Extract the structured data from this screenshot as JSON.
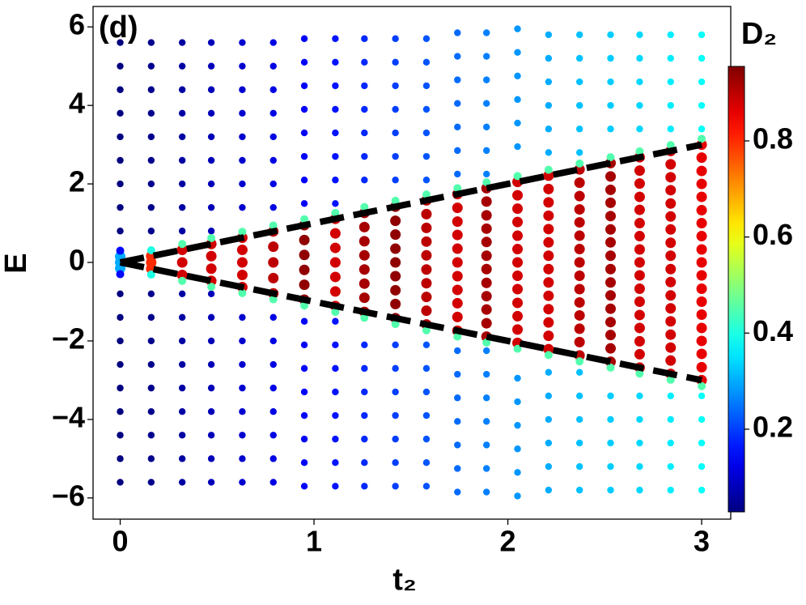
{
  "chart_data": {
    "type": "scatter",
    "annotation": "(d)",
    "x_label": "t₂",
    "y_label": "E",
    "colorbar_label": "D₂",
    "xlim": [
      -0.14,
      3.15
    ],
    "ylim": [
      -6.54,
      6.52
    ],
    "clim": [
      0.028,
      0.955
    ],
    "xticks": [
      0,
      1,
      2,
      3
    ],
    "yticks": [
      {
        "value": -6,
        "label": "−6"
      },
      {
        "value": -4,
        "label": "−4"
      },
      {
        "value": -2,
        "label": "−2"
      },
      0,
      2,
      4,
      6
    ],
    "cticks": [
      0.2,
      0.4,
      0.6,
      0.8
    ],
    "lines": [
      {
        "x": [
          0,
          3
        ],
        "y": [
          0,
          3
        ],
        "color": "#000000"
      },
      {
        "x": [
          0,
          3
        ],
        "y": [
          0,
          -3
        ],
        "color": "#000000"
      }
    ],
    "columns": [
      {
        "x": 0,
        "E_outer": [
          5.6,
          5.0,
          4.4,
          3.8,
          3.2,
          2.6,
          2.0,
          1.4,
          0.8,
          -0.8,
          -1.4,
          -2.0,
          -2.6,
          -3.2,
          -3.8,
          -4.4,
          -5.0,
          -5.6
        ],
        "D2_outer": 0.02,
        "E_edge": [
          0.3,
          -0.3
        ],
        "D2_edge": 0.15,
        "E_inner": [
          0.15,
          0,
          -0.15
        ],
        "D2_inner": 0.3
      },
      {
        "x": 0.16,
        "E_outer": [
          5.6,
          5.0,
          4.4,
          3.8,
          3.2,
          2.6,
          2.0,
          1.4,
          0.8,
          -0.8,
          -1.4,
          -2.0,
          -2.6,
          -3.2,
          -3.8,
          -4.4,
          -5.0,
          -5.6
        ],
        "D2_outer": 0.04,
        "E_edge": [
          0.31,
          -0.31
        ],
        "D2_edge": 0.4,
        "E_inner": [
          0.16,
          0,
          -0.16
        ],
        "D2_inner": 0.8
      },
      {
        "x": 0.32,
        "E_outer": [
          5.6,
          5.0,
          4.4,
          3.8,
          3.2,
          2.6,
          2.0,
          1.4,
          0.8,
          -0.8,
          -1.4,
          -2.0,
          -2.6,
          -3.2,
          -3.8,
          -4.4,
          -5.0,
          -5.6
        ],
        "D2_outer": 0.06,
        "E_edge": [
          0.47,
          -0.47
        ],
        "D2_edge": 0.45,
        "E_inner": [
          0.32,
          0,
          -0.32
        ],
        "D2_inner": 0.88
      },
      {
        "x": 0.47,
        "E_outer": [
          5.6,
          5.0,
          4.4,
          3.8,
          3.2,
          2.6,
          2.0,
          1.4,
          0.8,
          -0.8,
          -1.4,
          -2.0,
          -2.6,
          -3.2,
          -3.8,
          -4.4,
          -5.0,
          -5.6
        ],
        "D2_outer": 0.08,
        "E_edge": [
          0.62,
          -0.62
        ],
        "D2_edge": 0.45,
        "E_inner": [
          0.47,
          0.16,
          -0.16,
          -0.47
        ],
        "D2_inner": 0.88
      },
      {
        "x": 0.63,
        "E_outer": [
          5.6,
          5.0,
          4.4,
          3.8,
          3.2,
          2.6,
          2.0,
          1.4,
          -1.4,
          -2.0,
          -2.6,
          -3.2,
          -3.8,
          -4.4,
          -5.0,
          -5.6
        ],
        "D2_outer": 0.1,
        "E_edge": [
          0.78,
          -0.78
        ],
        "D2_edge": 0.45,
        "E_inner": [
          0.63,
          0.32,
          0,
          -0.32,
          -0.63
        ],
        "D2_inner": 0.88
      },
      {
        "x": 0.79,
        "E_outer": [
          5.6,
          5.0,
          4.4,
          3.8,
          3.2,
          2.6,
          2.0,
          1.4,
          -1.4,
          -2.0,
          -2.6,
          -3.2,
          -3.8,
          -4.4,
          -5.0,
          -5.6
        ],
        "D2_outer": 0.12,
        "E_edge": [
          0.94,
          -0.94
        ],
        "D2_edge": 0.45,
        "E_inner": [
          0.79,
          0.4,
          0,
          -0.4,
          -0.79
        ],
        "D2_inner": 0.9
      },
      {
        "x": 0.95,
        "E_outer": [
          5.7,
          5.1,
          4.5,
          3.9,
          3.3,
          2.7,
          2.1,
          1.5,
          -1.5,
          -2.1,
          -2.7,
          -3.3,
          -3.9,
          -4.5,
          -5.1,
          -5.7
        ],
        "D2_outer": 0.14,
        "E_edge": [
          1.1,
          -1.1
        ],
        "D2_edge": 0.45,
        "E_inner": [
          0.95,
          0.57,
          0.19,
          -0.19,
          -0.57,
          -0.95
        ],
        "D2_inner": 0.94
      },
      {
        "x": 1.11,
        "E_outer": [
          5.7,
          5.1,
          4.5,
          3.9,
          3.3,
          2.7,
          2.1,
          1.5,
          -1.5,
          -2.1,
          -2.7,
          -3.3,
          -3.9,
          -4.5,
          -5.1,
          -5.7
        ],
        "D2_outer": 0.16,
        "E_edge": [
          1.26,
          -1.26
        ],
        "D2_edge": 0.45,
        "E_inner": [
          1.11,
          0.74,
          0.37,
          0,
          -0.37,
          -0.74,
          -1.11
        ],
        "D2_inner": 0.88
      },
      {
        "x": 1.26,
        "E_outer": [
          5.7,
          5.1,
          4.5,
          3.9,
          3.3,
          2.7,
          2.1,
          -2.1,
          -2.7,
          -3.3,
          -3.9,
          -4.5,
          -5.1,
          -5.7
        ],
        "D2_outer": 0.18,
        "E_edge": [
          1.41,
          -1.41
        ],
        "D2_edge": 0.45,
        "E_inner": [
          1.26,
          0.9,
          0.54,
          0.18,
          -0.18,
          -0.54,
          -0.9,
          -1.26
        ],
        "D2_inner": 0.92
      },
      {
        "x": 1.42,
        "E_outer": [
          5.7,
          5.1,
          4.5,
          3.9,
          3.3,
          2.7,
          2.1,
          -2.1,
          -2.7,
          -3.3,
          -3.9,
          -4.5,
          -5.1,
          -5.7
        ],
        "D2_outer": 0.2,
        "E_edge": [
          1.57,
          -1.57
        ],
        "D2_edge": 0.45,
        "E_inner": [
          1.42,
          1.06,
          0.71,
          0.35,
          0,
          -0.35,
          -0.71,
          -1.06,
          -1.42
        ],
        "D2_inner": 0.94
      },
      {
        "x": 1.58,
        "E_outer": [
          5.7,
          5.1,
          4.5,
          3.9,
          3.3,
          2.7,
          2.1,
          -2.1,
          -2.7,
          -3.3,
          -3.9,
          -4.5,
          -5.1,
          -5.7
        ],
        "D2_outer": 0.22,
        "E_edge": [
          1.73,
          -1.73
        ],
        "D2_edge": 0.45,
        "E_inner": [
          1.58,
          1.23,
          0.88,
          0.53,
          0.18,
          -0.18,
          -0.53,
          -0.88,
          -1.23,
          -1.58
        ],
        "D2_inner": 0.9
      },
      {
        "x": 1.74,
        "E_outer": [
          5.85,
          5.25,
          4.65,
          4.05,
          3.45,
          2.85,
          2.25,
          -2.25,
          -2.85,
          -3.45,
          -4.05,
          -4.65,
          -5.25,
          -5.85
        ],
        "D2_outer": 0.24,
        "E_edge": [
          1.89,
          -1.89
        ],
        "D2_edge": 0.45,
        "E_inner": [
          1.74,
          1.39,
          1.04,
          0.7,
          0.35,
          0,
          -0.35,
          -0.7,
          -1.04,
          -1.39,
          -1.74
        ],
        "D2_inner": 0.88
      },
      {
        "x": 1.89,
        "E_outer": [
          5.85,
          5.25,
          4.65,
          4.05,
          3.45,
          2.85,
          2.25,
          -2.25,
          -2.85,
          -3.45,
          -4.05,
          -4.65,
          -5.25,
          -5.85
        ],
        "D2_outer": 0.26,
        "E_edge": [
          2.04,
          -2.04
        ],
        "D2_edge": 0.45,
        "E_inner": [
          1.89,
          1.55,
          1.2,
          0.86,
          0.52,
          0.17,
          -0.17,
          -0.52,
          -0.86,
          -1.2,
          -1.55,
          -1.89
        ],
        "D2_inner": 0.92
      },
      {
        "x": 2.05,
        "E_outer": [
          5.95,
          5.35,
          4.75,
          4.15,
          3.55,
          2.95,
          -2.95,
          -3.55,
          -4.15,
          -4.75,
          -5.35,
          -5.95
        ],
        "D2_outer": 0.28,
        "E_edge": [
          2.2,
          -2.2
        ],
        "D2_edge": 0.45,
        "E_inner": [
          2.05,
          1.71,
          1.37,
          1.03,
          0.68,
          0.34,
          0,
          -0.34,
          -0.68,
          -1.03,
          -1.37,
          -1.71,
          -2.05
        ],
        "D2_inner": 0.88
      },
      {
        "x": 2.21,
        "E_outer": [
          5.8,
          5.2,
          4.6,
          4.0,
          3.4,
          2.8,
          -2.8,
          -3.4,
          -4.0,
          -4.6,
          -5.2,
          -5.8
        ],
        "D2_outer": 0.3,
        "E_edge": [
          2.36,
          -2.36
        ],
        "D2_edge": 0.45,
        "E_inner": [
          2.21,
          1.87,
          1.53,
          1.19,
          0.85,
          0.51,
          0.17,
          -0.17,
          -0.51,
          -0.85,
          -1.19,
          -1.53,
          -1.87,
          -2.21
        ],
        "D2_inner": 0.88
      },
      {
        "x": 2.37,
        "E_outer": [
          5.8,
          5.2,
          4.6,
          4.0,
          3.4,
          2.8,
          -2.8,
          -3.4,
          -4.0,
          -4.6,
          -5.2,
          -5.8
        ],
        "D2_outer": 0.32,
        "E_edge": [
          2.52,
          -2.52
        ],
        "D2_edge": 0.45,
        "E_inner": [
          2.37,
          2.03,
          1.69,
          1.35,
          1.02,
          0.68,
          0.34,
          0,
          -0.34,
          -0.68,
          -1.02,
          -1.35,
          -1.69,
          -2.03,
          -2.37
        ],
        "D2_inner": 0.9
      },
      {
        "x": 2.53,
        "E_outer": [
          5.8,
          5.2,
          4.6,
          4.0,
          3.4,
          -3.4,
          -4.0,
          -4.6,
          -5.2,
          -5.8
        ],
        "D2_outer": 0.33,
        "E_edge": [
          2.68,
          -2.68
        ],
        "D2_edge": 0.45,
        "E_inner": [
          2.53,
          2.19,
          1.85,
          1.52,
          1.18,
          0.84,
          0.51,
          0.17,
          -0.17,
          -0.51,
          -0.84,
          -1.18,
          -1.52,
          -1.85,
          -2.19,
          -2.53
        ],
        "D2_inner": 0.92
      },
      {
        "x": 2.68,
        "E_outer": [
          5.8,
          5.2,
          4.6,
          4.0,
          3.4,
          -3.4,
          -4.0,
          -4.6,
          -5.2,
          -5.8
        ],
        "D2_outer": 0.34,
        "E_edge": [
          2.83,
          -2.83
        ],
        "D2_edge": 0.45,
        "E_inner": [
          2.68,
          2.34,
          2.01,
          1.67,
          1.34,
          1.0,
          0.67,
          0.33,
          0,
          -0.33,
          -0.67,
          -1.0,
          -1.34,
          -1.67,
          -2.01,
          -2.34,
          -2.68
        ],
        "D2_inner": 0.88
      },
      {
        "x": 2.84,
        "E_outer": [
          5.8,
          5.2,
          4.6,
          4.0,
          3.4,
          -3.4,
          -4.0,
          -4.6,
          -5.2,
          -5.8
        ],
        "D2_outer": 0.36,
        "E_edge": [
          2.99,
          -2.99
        ],
        "D2_edge": 0.45,
        "E_inner": [
          2.84,
          2.5,
          2.17,
          1.84,
          1.5,
          1.17,
          0.84,
          0.5,
          0.17,
          -0.17,
          -0.5,
          -0.84,
          -1.17,
          -1.5,
          -1.84,
          -2.17,
          -2.5,
          -2.84
        ],
        "D2_inner": 0.88
      },
      {
        "x": 3.0,
        "E_outer": [
          5.8,
          5.2,
          4.6,
          4.0,
          3.4,
          -3.4,
          -4.0,
          -4.6,
          -5.2,
          -5.8
        ],
        "D2_outer": 0.38,
        "E_edge": [
          3.15,
          -3.15
        ],
        "D2_edge": 0.45,
        "E_inner": [
          3.0,
          2.67,
          2.33,
          2.0,
          1.67,
          1.33,
          1.0,
          0.67,
          0.33,
          0,
          -0.33,
          -0.67,
          -1.0,
          -1.33,
          -1.67,
          -2.0,
          -2.33,
          -2.67,
          -3.0
        ],
        "D2_inner": 0.86
      }
    ]
  }
}
